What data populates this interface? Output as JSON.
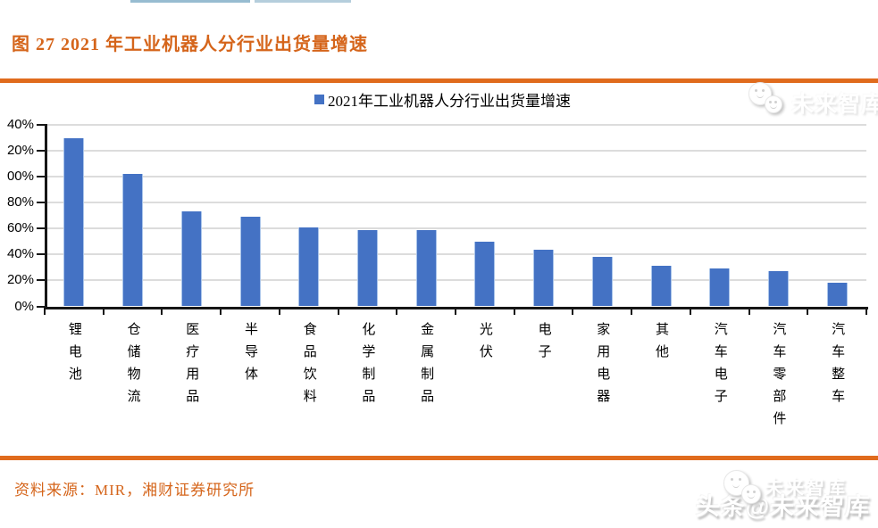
{
  "page": {
    "figure_title": "图 27 2021 年工业机器人分行业出货量增速",
    "source": "资料来源：MIR，湘财证券研究所"
  },
  "colors": {
    "accent_orange": "#d5651b",
    "bar_blue": "#4472c4",
    "grid_gray": "#dcdcdc"
  },
  "watermarks": {
    "top_right": "未来智库",
    "bottom_ghost": "未来智库",
    "bottom_main": "头条@未来智库"
  },
  "chart_data": {
    "type": "bar",
    "legend": "2021年工业机器人分行业出货量增速",
    "legend_position": "top-center",
    "categories": [
      "锂电池",
      "仓储物流",
      "医疗用品",
      "半导体",
      "食品饮料",
      "化学制品",
      "金属制品",
      "光伏",
      "电子",
      "家用电器",
      "其他",
      "汽车电子",
      "汽车零部件",
      "汽车整车"
    ],
    "values": [
      130,
      102,
      73,
      69,
      61,
      59,
      59,
      50,
      44,
      38,
      31,
      29,
      27,
      18
    ],
    "unit": "%",
    "ylim": [
      0,
      140
    ],
    "ytick_step": 20,
    "ytick_labels_top_to_bottom": [
      "40%",
      "20%",
      "00%",
      "80%",
      "60%",
      "40%",
      "20%",
      "0%"
    ],
    "grid": true,
    "bar_color": "#4472c4"
  }
}
